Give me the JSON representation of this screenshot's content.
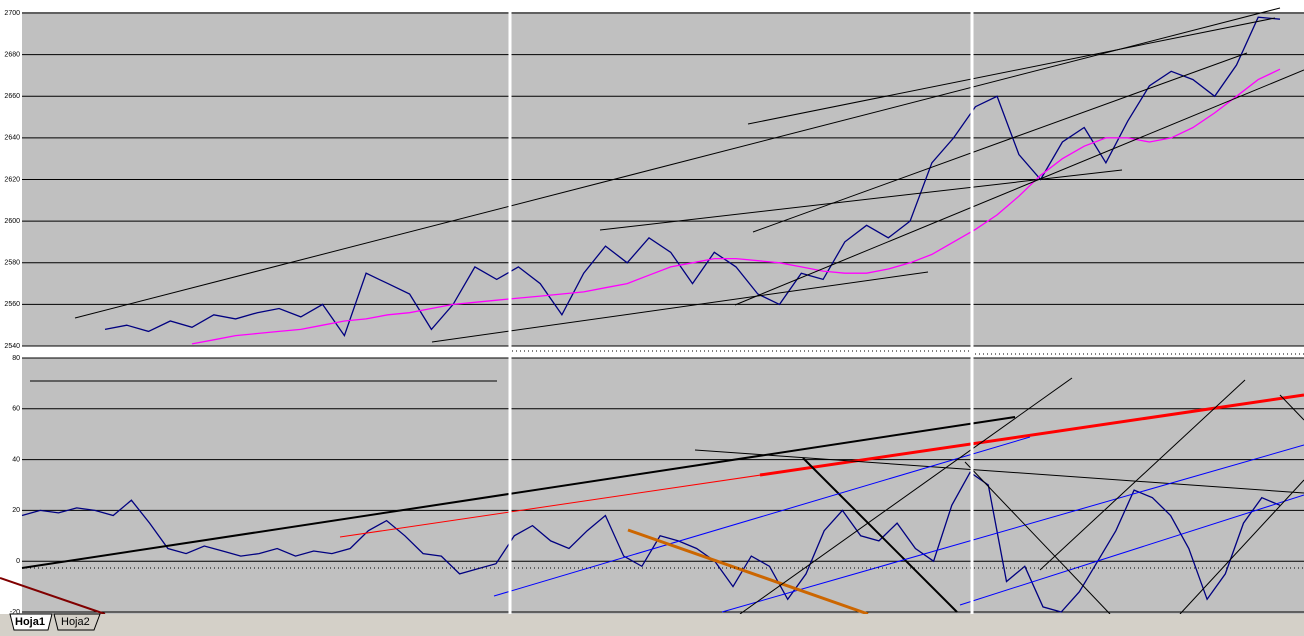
{
  "chart_data": [
    {
      "type": "line",
      "ylim": [
        2540,
        2700
      ],
      "yticks": [
        2540,
        2560,
        2580,
        2600,
        2620,
        2640,
        2660,
        2680,
        2700
      ],
      "grid": true,
      "series": [
        {
          "color": "#000080",
          "values": [
            2548,
            2550,
            2547,
            2552,
            2549,
            2555,
            2553,
            2556,
            2558,
            2554,
            2560,
            2545,
            2575,
            2570,
            2565,
            2548,
            2560,
            2578,
            2572,
            2578,
            2570,
            2555,
            2575,
            2588,
            2580,
            2592,
            2585,
            2570,
            2585,
            2578,
            2565,
            2560,
            2575,
            2572,
            2590,
            2598,
            2592,
            2600,
            2628,
            2640,
            2655,
            2660,
            2632,
            2620,
            2638,
            2645,
            2628,
            2648,
            2665,
            2672,
            2668,
            2660,
            2675,
            2698,
            2697
          ]
        },
        {
          "color": "#ff00ff",
          "values": [
            null,
            null,
            null,
            null,
            2541,
            2543,
            2545,
            2546,
            2547,
            2548,
            2550,
            2552,
            2553,
            2555,
            2556,
            2558,
            2560,
            2561,
            2562,
            2563,
            2564,
            2565,
            2566,
            2568,
            2570,
            2574,
            2578,
            2580,
            2582,
            2582,
            2581,
            2580,
            2578,
            2576,
            2575,
            2575,
            2577,
            2580,
            2584,
            2590,
            2596,
            2603,
            2612,
            2622,
            2630,
            2636,
            2640,
            2640,
            2638,
            2640,
            2645,
            2652,
            2660,
            2668,
            2673
          ]
        }
      ]
    },
    {
      "type": "line",
      "ylim": [
        -20,
        80
      ],
      "yticks": [
        -20,
        0,
        20,
        40,
        60,
        80
      ],
      "grid": true,
      "series": [
        {
          "color": "#000080",
          "values": [
            18,
            20,
            19,
            21,
            20,
            18,
            24,
            15,
            5,
            3,
            6,
            4,
            2,
            3,
            5,
            2,
            4,
            3,
            5,
            12,
            16,
            10,
            3,
            2,
            -5,
            -3,
            -1,
            10,
            14,
            8,
            5,
            12,
            18,
            2,
            -2,
            10,
            8,
            5,
            0,
            -10,
            2,
            -2,
            -15,
            -5,
            12,
            20,
            10,
            8,
            15,
            5,
            0,
            22,
            35,
            30,
            -8,
            -2,
            -18,
            -20,
            -12,
            0,
            12,
            28,
            25,
            18,
            5,
            -15,
            -5,
            15,
            25,
            22
          ]
        }
      ]
    }
  ],
  "tabs": [
    "Hoja1",
    "Hoja2"
  ]
}
